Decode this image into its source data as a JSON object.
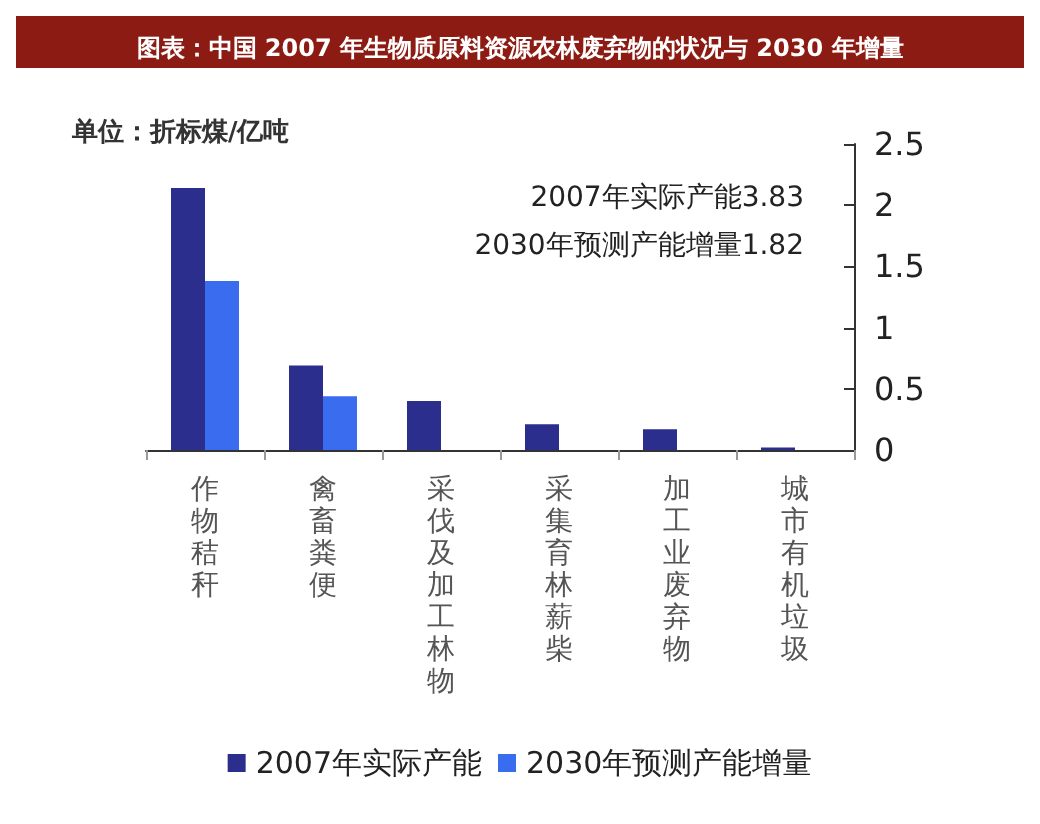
{
  "chart_data": {
    "type": "bar",
    "title": "图表：中国 2007 年生物质原料资源农林废弃物的状况与 2030 年增量",
    "ylabel": "单位：折标煤/亿吨",
    "categories": [
      "作物秸秆",
      "禽畜粪便",
      "采伐及加工林物",
      "采集育林薪柴",
      "加工业废弃物",
      "城市有机垃圾"
    ],
    "series": [
      {
        "name": "2007年实际产能",
        "color": "#2b2e8c",
        "values": [
          2.14,
          0.69,
          0.4,
          0.21,
          0.17,
          0.02
        ]
      },
      {
        "name": "2030年预测产能增量",
        "color": "#3a6cf0",
        "values": [
          1.38,
          0.44,
          null,
          null,
          null,
          null
        ]
      }
    ],
    "ylim": [
      0,
      2.5
    ],
    "yticks": [
      0,
      0.5,
      1,
      1.5,
      2,
      2.5
    ],
    "grid": false,
    "legend": "bottom",
    "annotations": [
      "2007年实际产能3.83",
      "2030年预测产能增量1.82"
    ]
  }
}
